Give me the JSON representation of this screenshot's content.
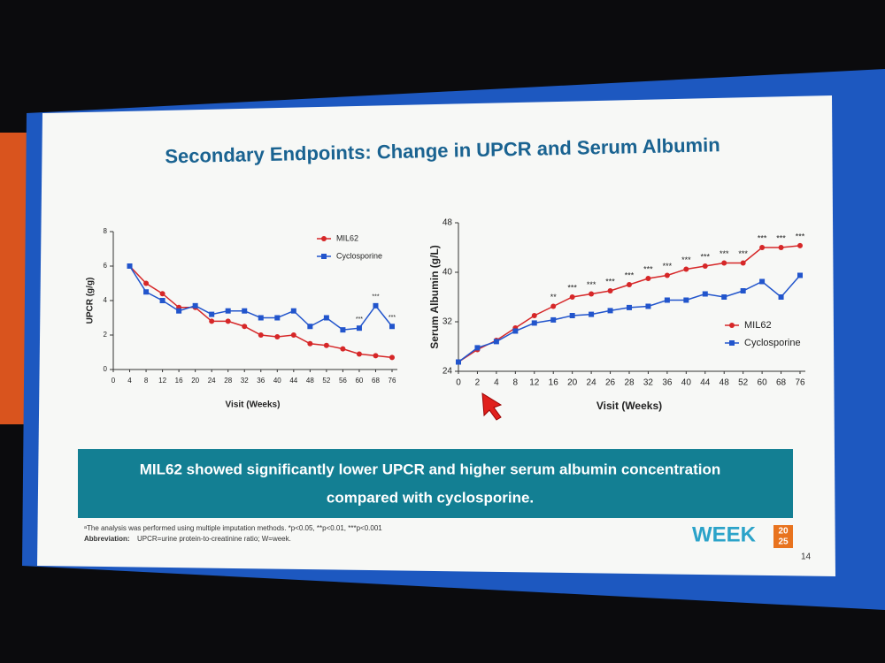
{
  "slide": {
    "title": "Secondary Endpoints: Change in UPCR and Serum Albumin",
    "banner": [
      "MIL62 showed significantly lower UPCR and higher serum albumin concentration",
      "compared with cyclosporine."
    ],
    "footnote": "ᵃThe analysis was performed using multiple imputation methods. *p<0.05, **p<0.01, ***p<0.001",
    "abbreviation_label": "Abbreviation:",
    "abbreviation": "UPCR=urine protein-to-creatinine ratio; W=week.",
    "logo": {
      "text": "WEEK",
      "year": [
        "20",
        "25"
      ]
    },
    "page": "14"
  },
  "chart_data": [
    {
      "type": "line",
      "ylabel": "UPCR (g/g)",
      "xlabel": "Visit (Weeks)",
      "categories": [
        "0",
        "4",
        "8",
        "12",
        "16",
        "20",
        "24",
        "28",
        "32",
        "36",
        "40",
        "44",
        "48",
        "52",
        "56",
        "60",
        "68",
        "76"
      ],
      "series": [
        {
          "name": "MIL62",
          "color": "#d62728",
          "marker": "circle",
          "values": [
            null,
            6,
            5,
            4.4,
            3.6,
            3.6,
            2.8,
            2.8,
            2.5,
            2.0,
            1.9,
            2.0,
            1.5,
            1.4,
            1.2,
            0.9,
            0.8,
            0.7
          ]
        },
        {
          "name": "Cyclosporine",
          "color": "#2255cc",
          "marker": "square",
          "values": [
            null,
            6,
            4.5,
            4.0,
            3.4,
            3.7,
            3.2,
            3.4,
            3.4,
            3.0,
            3.0,
            3.4,
            2.5,
            3.0,
            2.3,
            2.4,
            3.7,
            2.5
          ]
        }
      ],
      "ylim": [
        0,
        8
      ],
      "yticks": [
        0,
        2,
        4,
        6,
        8
      ],
      "legend": "top-right",
      "annotations": [
        {
          "category": "60",
          "label": "***"
        },
        {
          "category": "68",
          "label": "***"
        },
        {
          "category": "76",
          "label": "***"
        }
      ]
    },
    {
      "type": "line",
      "ylabel": "Serum Albumin (g/L)",
      "xlabel": "Visit (Weeks)",
      "categories": [
        "0",
        "2",
        "4",
        "8",
        "12",
        "16",
        "20",
        "24",
        "26",
        "28",
        "32",
        "36",
        "40",
        "44",
        "48",
        "52",
        "60",
        "68",
        "76"
      ],
      "series": [
        {
          "name": "MIL62",
          "color": "#d62728",
          "marker": "circle",
          "values": [
            25.5,
            27.5,
            29,
            31,
            33,
            34.5,
            36,
            36.5,
            37,
            38,
            39,
            39.5,
            40.5,
            41,
            41.5,
            41.5,
            44,
            44,
            44.3
          ]
        },
        {
          "name": "Cyclosporine",
          "color": "#2255cc",
          "marker": "square",
          "values": [
            25.5,
            27.8,
            28.8,
            30.5,
            31.8,
            32.3,
            33,
            33.2,
            33.8,
            34.3,
            34.5,
            35.5,
            35.5,
            36.5,
            36,
            37,
            38.5,
            36,
            39.5
          ]
        }
      ],
      "ylim": [
        24,
        48
      ],
      "yticks": [
        24,
        32,
        40,
        48
      ],
      "legend": "bottom-right",
      "annotations": [
        {
          "category": "16",
          "label": "**"
        },
        {
          "category": "20",
          "label": "***"
        },
        {
          "category": "24",
          "label": "***"
        },
        {
          "category": "26",
          "label": "***"
        },
        {
          "category": "28",
          "label": "***"
        },
        {
          "category": "32",
          "label": "***"
        },
        {
          "category": "36",
          "label": "***"
        },
        {
          "category": "40",
          "label": "***"
        },
        {
          "category": "44",
          "label": "***"
        },
        {
          "category": "48",
          "label": "***"
        },
        {
          "category": "52",
          "label": "***"
        },
        {
          "category": "60",
          "label": "***"
        },
        {
          "category": "68",
          "label": "***"
        },
        {
          "category": "76",
          "label": "***"
        }
      ]
    }
  ]
}
